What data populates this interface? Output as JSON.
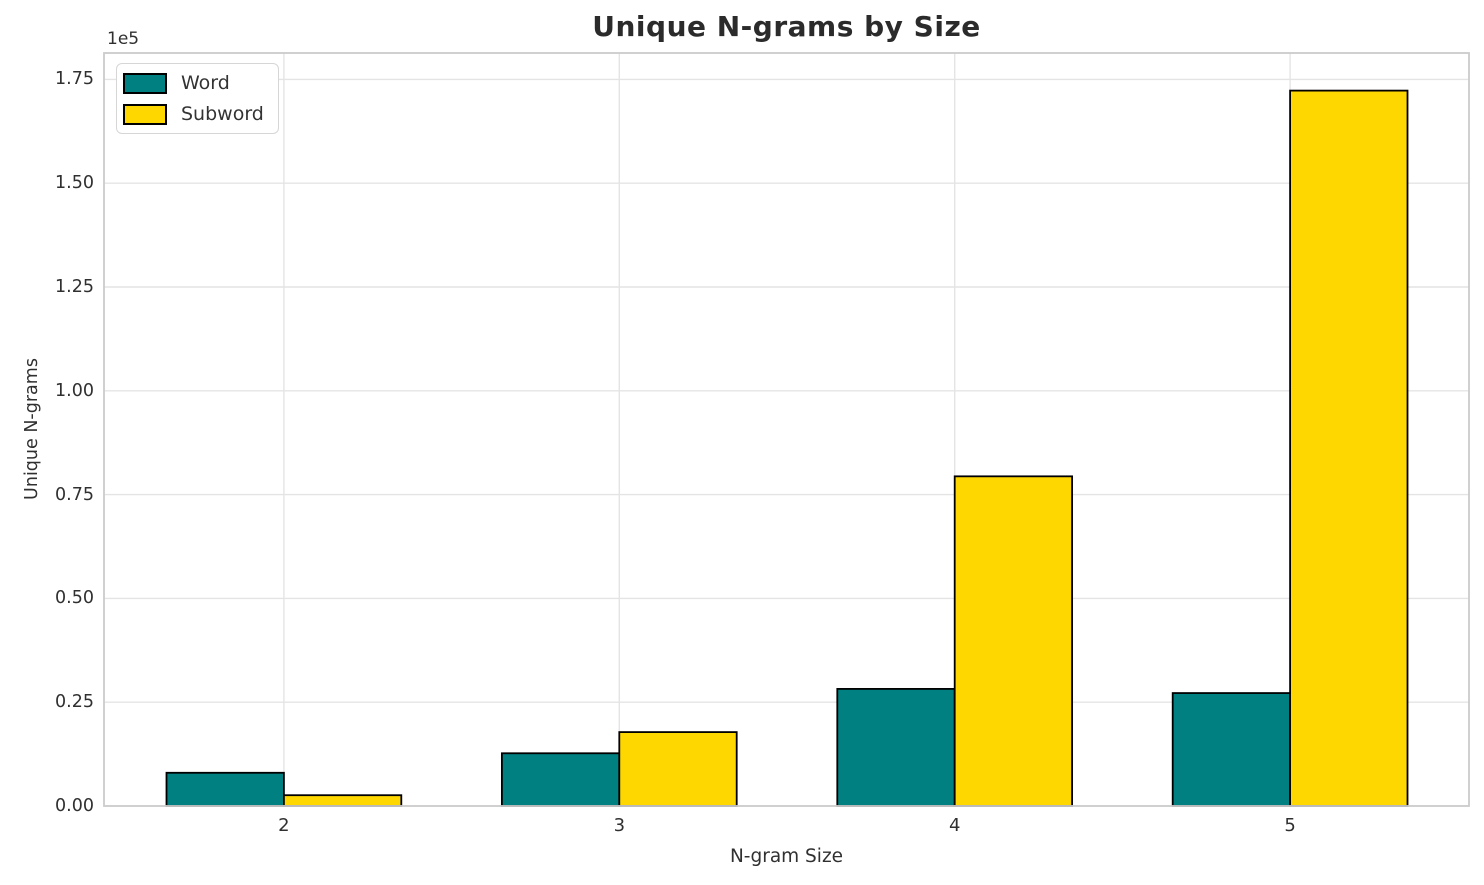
{
  "chart_data": {
    "type": "bar",
    "title": "Unique N-grams by Size",
    "xlabel": "N-gram Size",
    "ylabel": "Unique N-grams",
    "offset_text": "1e5",
    "categories": [
      "2",
      "3",
      "4",
      "5"
    ],
    "series": [
      {
        "name": "Word",
        "color": "#008080",
        "values": [
          8000,
          12700,
          28200,
          27200
        ]
      },
      {
        "name": "Subword",
        "color": "#FFD700",
        "values": [
          2600,
          17800,
          79400,
          172300
        ]
      }
    ],
    "bar_edge_color": "#000000",
    "yticks": {
      "values": [
        0,
        25000,
        50000,
        75000,
        100000,
        125000,
        150000,
        175000
      ],
      "labels": [
        "0.00",
        "0.25",
        "0.50",
        "0.75",
        "1.00",
        "1.25",
        "1.50",
        "1.75"
      ]
    },
    "ylim": [
      0,
      180700
    ],
    "grid": true,
    "legend_position": "upper left"
  }
}
